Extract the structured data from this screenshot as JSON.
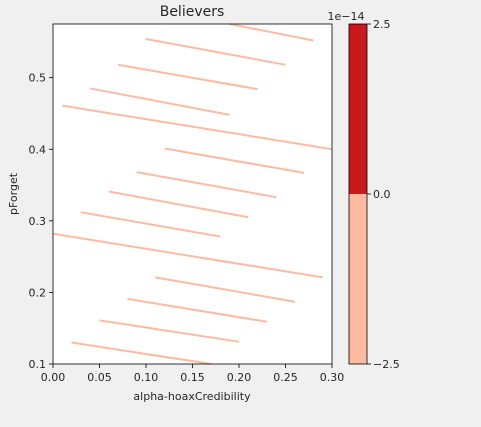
{
  "chart_data": {
    "type": "heatmap",
    "title": "Believers",
    "xlabel": "alpha-hoaxCredibility",
    "ylabel": "pForget",
    "xlim": [
      0.0,
      0.3
    ],
    "ylim": [
      0.1,
      0.575
    ],
    "xticks": [
      0.0,
      0.05,
      0.1,
      0.15,
      0.2,
      0.25,
      0.3
    ],
    "xtick_labels": [
      "0.00",
      "0.05",
      "0.10",
      "0.15",
      "0.20",
      "0.25",
      "0.30"
    ],
    "yticks": [
      0.1,
      0.2,
      0.3,
      0.4,
      0.5
    ],
    "ytick_labels": [
      "0.1",
      "0.2",
      "0.3",
      "0.4",
      "0.5"
    ],
    "colorbar": {
      "offset_label": "1e−14",
      "ticks": [
        2.5,
        0.0,
        -2.5
      ],
      "tick_labels": [
        "2.5",
        "0.0",
        "−2.5"
      ],
      "levels": [
        {
          "from": -2.5,
          "to": 0.0,
          "color": "#fcbba1"
        },
        {
          "from": 0.0,
          "to": 2.5,
          "color": "#cb181d"
        }
      ]
    },
    "contour_color": "#fcbba1",
    "segments": [
      {
        "x": [
          0.19,
          0.28
        ],
        "y": [
          0.575,
          0.552
        ]
      },
      {
        "x": [
          0.1,
          0.25
        ],
        "y": [
          0.554,
          0.518
        ]
      },
      {
        "x": [
          0.07,
          0.22
        ],
        "y": [
          0.518,
          0.484
        ]
      },
      {
        "x": [
          0.04,
          0.19
        ],
        "y": [
          0.485,
          0.448
        ]
      },
      {
        "x": [
          0.01,
          0.3
        ],
        "y": [
          0.461,
          0.4
        ]
      },
      {
        "x": [
          0.12,
          0.27
        ],
        "y": [
          0.401,
          0.367
        ]
      },
      {
        "x": [
          0.09,
          0.24
        ],
        "y": [
          0.368,
          0.333
        ]
      },
      {
        "x": [
          0.06,
          0.21
        ],
        "y": [
          0.341,
          0.305
        ]
      },
      {
        "x": [
          0.03,
          0.18
        ],
        "y": [
          0.312,
          0.278
        ]
      },
      {
        "x": [
          0.0,
          0.29
        ],
        "y": [
          0.282,
          0.221
        ]
      },
      {
        "x": [
          0.11,
          0.26
        ],
        "y": [
          0.221,
          0.187
        ]
      },
      {
        "x": [
          0.08,
          0.23
        ],
        "y": [
          0.191,
          0.159
        ]
      },
      {
        "x": [
          0.05,
          0.2
        ],
        "y": [
          0.161,
          0.131
        ]
      },
      {
        "x": [
          0.02,
          0.17
        ],
        "y": [
          0.13,
          0.1
        ]
      }
    ]
  }
}
